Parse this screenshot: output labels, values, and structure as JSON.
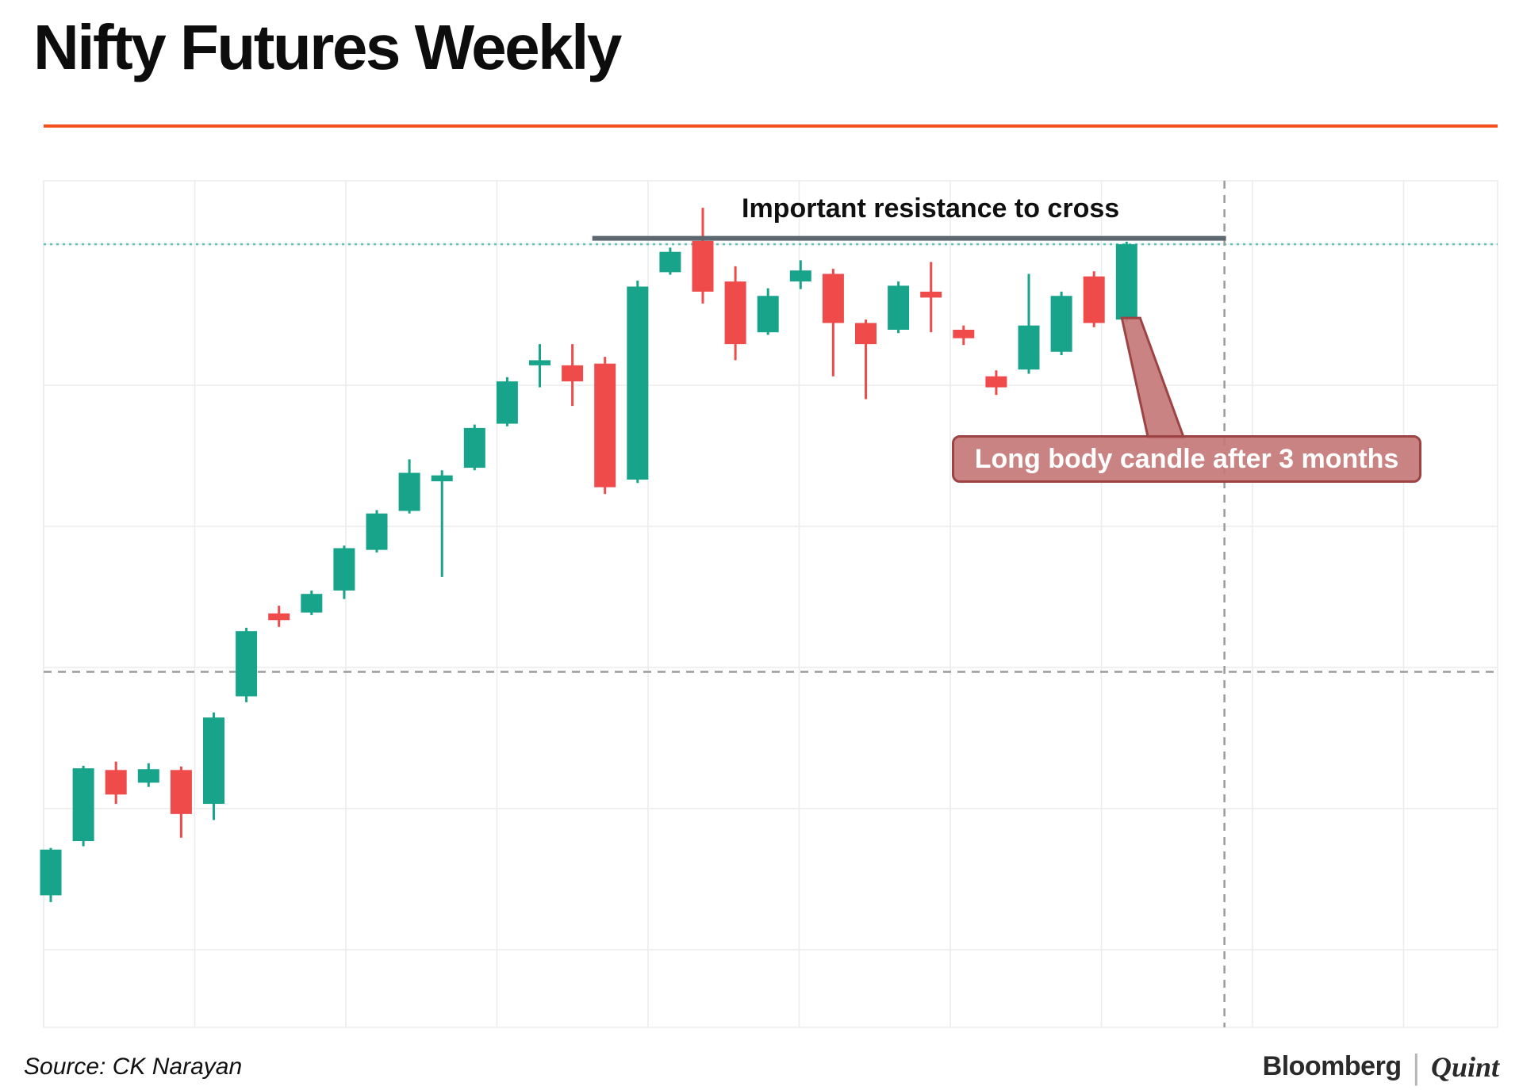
{
  "header": {
    "title": "Nifty Futures Weekly",
    "accent_color": "#f4511e"
  },
  "chart_data": {
    "type": "candlestick",
    "title": "Nifty Futures Weekly",
    "xlabel": "",
    "ylabel": "",
    "x_axis_labels_visible": false,
    "y_axis_labels_visible": false,
    "value_units": "normalized 0-100 of plot height (no axis labels visible in image)",
    "ylim": [
      0,
      100
    ],
    "grid": true,
    "legend": "none",
    "colors": {
      "up": "#18a38b",
      "down": "#ef4b4b",
      "grid": "#ececec",
      "resistance_dotted": "#5fc4bc",
      "resistance_solid": "#5d6770",
      "dashed_guides": "#9b9b9b",
      "callout_border": "#9d4343",
      "callout_fill": "rgba(198,120,120,0.92)",
      "callout_text": "#ffffff"
    },
    "candles": [
      {
        "o": 15.6,
        "h": 21.2,
        "l": 14.8,
        "c": 21.0
      },
      {
        "o": 22.0,
        "h": 30.9,
        "l": 21.4,
        "c": 30.6
      },
      {
        "o": 30.4,
        "h": 31.4,
        "l": 26.4,
        "c": 27.5
      },
      {
        "o": 28.9,
        "h": 31.2,
        "l": 28.4,
        "c": 30.5
      },
      {
        "o": 30.4,
        "h": 30.8,
        "l": 22.4,
        "c": 25.2
      },
      {
        "o": 26.4,
        "h": 37.2,
        "l": 24.5,
        "c": 36.6
      },
      {
        "o": 39.1,
        "h": 47.2,
        "l": 38.4,
        "c": 46.8
      },
      {
        "o": 48.9,
        "h": 49.8,
        "l": 47.3,
        "c": 48.1
      },
      {
        "o": 49.0,
        "h": 51.6,
        "l": 48.7,
        "c": 51.2
      },
      {
        "o": 51.6,
        "h": 56.9,
        "l": 50.6,
        "c": 56.6
      },
      {
        "o": 56.4,
        "h": 61.1,
        "l": 56.1,
        "c": 60.7
      },
      {
        "o": 61.0,
        "h": 67.1,
        "l": 60.7,
        "c": 65.5
      },
      {
        "o": 64.5,
        "h": 65.8,
        "l": 53.2,
        "c": 65.2
      },
      {
        "o": 66.1,
        "h": 71.2,
        "l": 65.8,
        "c": 70.8
      },
      {
        "o": 71.3,
        "h": 76.8,
        "l": 71.0,
        "c": 76.3
      },
      {
        "o": 78.2,
        "h": 80.7,
        "l": 75.6,
        "c": 78.8
      },
      {
        "o": 78.2,
        "h": 80.7,
        "l": 73.4,
        "c": 76.3
      },
      {
        "o": 78.4,
        "h": 79.2,
        "l": 63.0,
        "c": 63.8
      },
      {
        "o": 64.7,
        "h": 88.2,
        "l": 64.3,
        "c": 87.5
      },
      {
        "o": 89.2,
        "h": 92.1,
        "l": 88.9,
        "c": 91.6
      },
      {
        "o": 92.9,
        "h": 96.8,
        "l": 85.5,
        "c": 86.9
      },
      {
        "o": 88.1,
        "h": 89.9,
        "l": 78.8,
        "c": 80.7
      },
      {
        "o": 82.1,
        "h": 87.3,
        "l": 81.8,
        "c": 86.4
      },
      {
        "o": 88.1,
        "h": 90.6,
        "l": 87.2,
        "c": 89.4
      },
      {
        "o": 89.0,
        "h": 89.6,
        "l": 76.9,
        "c": 83.2
      },
      {
        "o": 83.2,
        "h": 83.6,
        "l": 74.2,
        "c": 80.7
      },
      {
        "o": 82.4,
        "h": 88.1,
        "l": 82.0,
        "c": 87.6
      },
      {
        "o": 86.9,
        "h": 90.4,
        "l": 82.1,
        "c": 86.2
      },
      {
        "o": 82.4,
        "h": 82.9,
        "l": 80.6,
        "c": 81.4
      },
      {
        "o": 76.9,
        "h": 77.6,
        "l": 74.7,
        "c": 75.6
      },
      {
        "o": 77.7,
        "h": 89.0,
        "l": 77.2,
        "c": 82.9
      },
      {
        "o": 79.8,
        "h": 86.9,
        "l": 79.4,
        "c": 86.4
      },
      {
        "o": 88.7,
        "h": 89.3,
        "l": 82.7,
        "c": 83.2
      },
      {
        "o": 83.6,
        "h": 92.8,
        "l": 83.3,
        "c": 92.5
      }
    ],
    "levels": {
      "resistance_dotted": 92.5,
      "resistance_solid": {
        "level": 93.2,
        "from_slot": 17,
        "to_slot": 36
      },
      "mid_dashed": 42,
      "vertical_dashed_slot": 36
    },
    "annotations": {
      "resistance_label": "Important resistance to cross",
      "callout_label": "Long body candle after 3 months",
      "callout_points_to_candle": 33
    }
  },
  "footer": {
    "source": "Source: CK Narayan",
    "brand_primary": "Bloomberg",
    "brand_divider": "|",
    "brand_secondary": "Quint"
  }
}
